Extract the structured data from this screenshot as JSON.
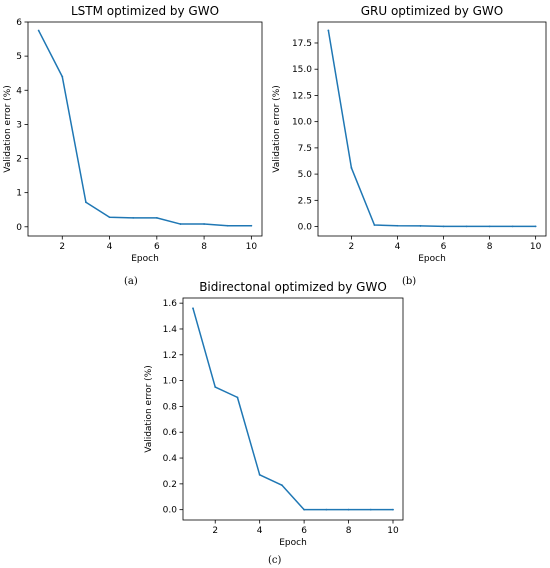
{
  "line_color": "#1f77b4",
  "chart_data": [
    {
      "type": "line",
      "title": "LSTM optimized by GWO",
      "xlabel": "Epoch",
      "ylabel": "Validation error  (%)",
      "caption": "(a)",
      "x": [
        1,
        2,
        3,
        4,
        5,
        6,
        7,
        8,
        9,
        10
      ],
      "values": [
        5.75,
        4.4,
        0.72,
        0.28,
        0.26,
        0.26,
        0.08,
        0.08,
        0.03,
        0.03
      ],
      "xlim": [
        0.55,
        10.45
      ],
      "ylim": [
        -0.27,
        6.0
      ],
      "xticks": [
        2,
        4,
        6,
        8,
        10
      ],
      "yticks": [
        0,
        1,
        2,
        3,
        4,
        5,
        6
      ],
      "ytick_labels": [
        "0",
        "1",
        "2",
        "3",
        "4",
        "5",
        "6"
      ],
      "grid": false
    },
    {
      "type": "line",
      "title": "GRU optimized by GWO",
      "xlabel": "Epoch",
      "ylabel": "Validation error (%)",
      "caption": "(b)",
      "x": [
        1,
        2,
        3,
        4,
        5,
        6,
        7,
        8,
        9,
        10
      ],
      "values": [
        18.7,
        5.6,
        0.15,
        0.08,
        0.06,
        0.02,
        0.02,
        0.02,
        0.02,
        0.02
      ],
      "xlim": [
        0.55,
        10.45
      ],
      "ylim": [
        -0.9,
        19.5
      ],
      "xticks": [
        2,
        4,
        6,
        8,
        10
      ],
      "yticks": [
        0,
        2.5,
        5,
        7.5,
        10,
        12.5,
        15,
        17.5
      ],
      "ytick_labels": [
        "0.0",
        "2.5",
        "5.0",
        "7.5",
        "10.0",
        "12.5",
        "15.0",
        "17.5"
      ],
      "grid": false
    },
    {
      "type": "line",
      "title": "Bidirectonal optimized by GWO",
      "xlabel": "Epoch",
      "ylabel": "Validation error (%)",
      "caption": "(c)",
      "x": [
        1,
        2,
        3,
        4,
        5,
        6,
        7,
        8,
        9,
        10
      ],
      "values": [
        1.56,
        0.95,
        0.87,
        0.27,
        0.19,
        0.0,
        0.0,
        0.0,
        0.0,
        0.0
      ],
      "xlim": [
        0.55,
        10.45
      ],
      "ylim": [
        -0.08,
        1.64
      ],
      "xticks": [
        2,
        4,
        6,
        8,
        10
      ],
      "yticks": [
        0,
        0.2,
        0.4,
        0.6,
        0.8,
        1.0,
        1.2,
        1.4,
        1.6
      ],
      "ytick_labels": [
        "0.0",
        "0.2",
        "0.4",
        "0.6",
        "0.8",
        "1.0",
        "1.2",
        "1.4",
        "1.6"
      ],
      "grid": false
    }
  ]
}
